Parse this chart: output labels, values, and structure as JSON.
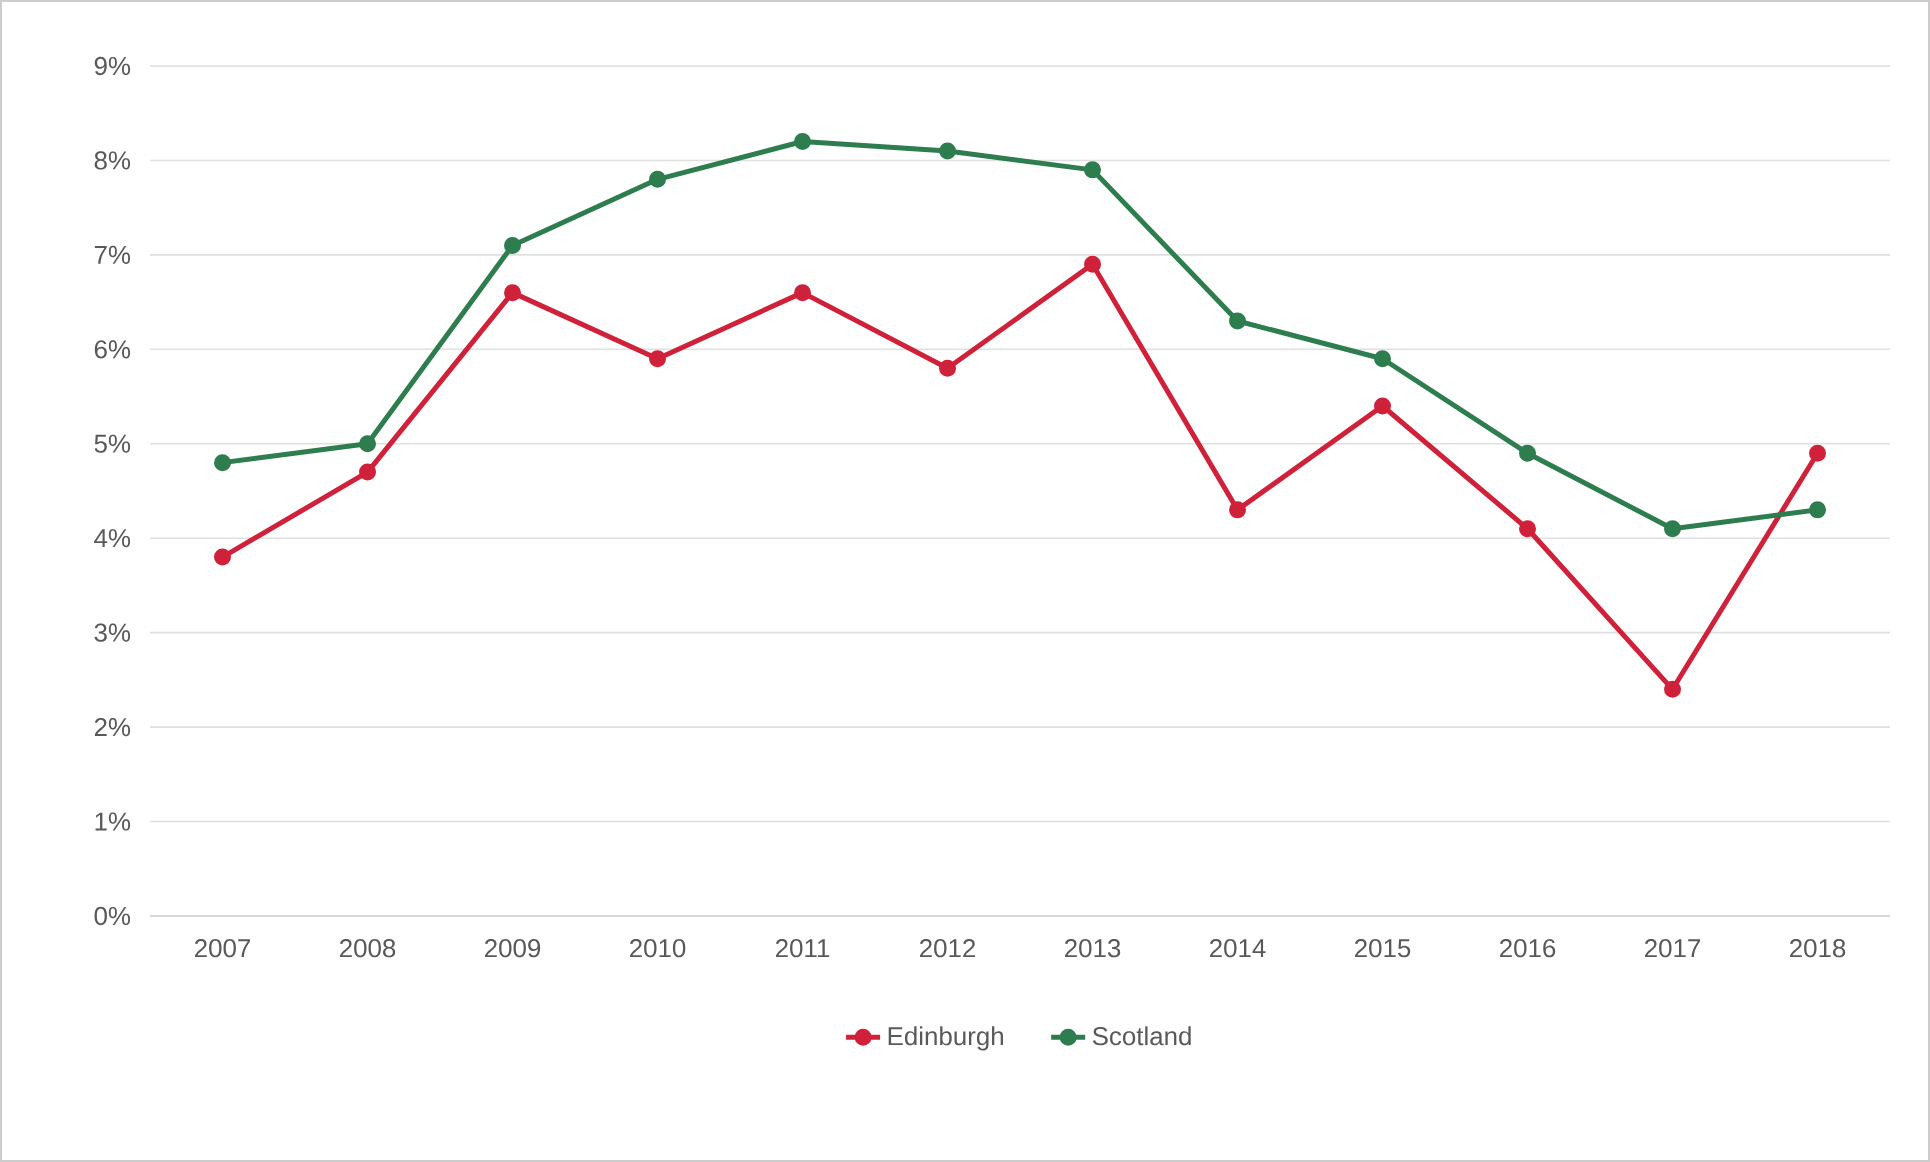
{
  "chart_data": {
    "type": "line",
    "categories": [
      "2007",
      "2008",
      "2009",
      "2010",
      "2011",
      "2012",
      "2013",
      "2014",
      "2015",
      "2016",
      "2017",
      "2018"
    ],
    "series": [
      {
        "name": "Edinburgh",
        "color": "#d0213a",
        "values": [
          3.8,
          4.7,
          6.6,
          5.9,
          6.6,
          5.8,
          6.9,
          4.3,
          5.4,
          4.1,
          2.4,
          4.9
        ]
      },
      {
        "name": "Scotland",
        "color": "#2e7d4f",
        "values": [
          4.8,
          5.0,
          7.1,
          7.8,
          8.2,
          8.1,
          7.9,
          6.3,
          5.9,
          4.9,
          4.1,
          4.3
        ]
      }
    ],
    "ylim": [
      0,
      9
    ],
    "yticks": [
      {
        "value": 0,
        "label": "0%"
      },
      {
        "value": 1,
        "label": "1%"
      },
      {
        "value": 2,
        "label": "2%"
      },
      {
        "value": 3,
        "label": "3%"
      },
      {
        "value": 4,
        "label": "4%"
      },
      {
        "value": 5,
        "label": "5%"
      },
      {
        "value": 6,
        "label": "6%"
      },
      {
        "value": 7,
        "label": "7%"
      },
      {
        "value": 8,
        "label": "8%"
      },
      {
        "value": 9,
        "label": "9%"
      }
    ],
    "grid": "y",
    "legend": "bottom",
    "marker": "circle"
  }
}
